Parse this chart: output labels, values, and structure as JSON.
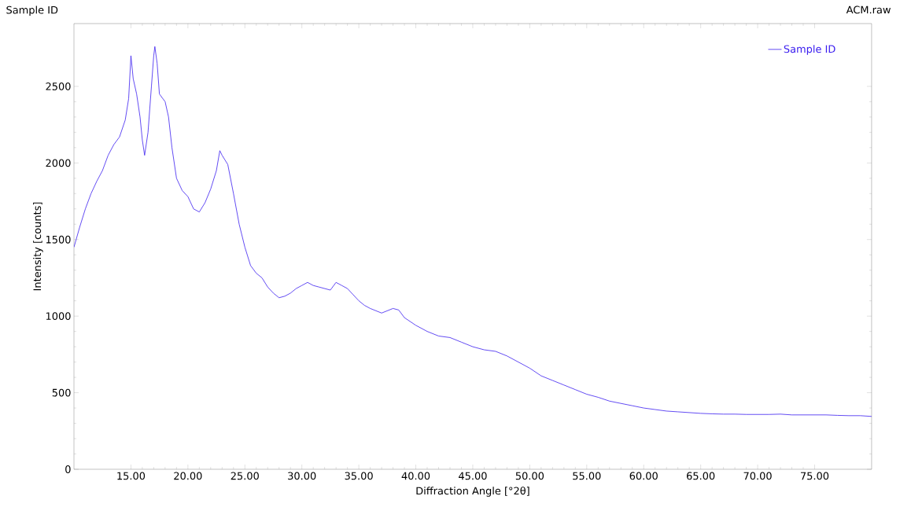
{
  "chart_data": {
    "type": "line",
    "title": "Sample ID",
    "annotations": [
      "ACM.raw"
    ],
    "xlabel": "Diffraction Angle [°2θ]",
    "ylabel": "Intensity [counts]",
    "x": [
      10.0,
      10.5,
      11,
      11.5,
      12,
      12.5,
      13,
      13.5,
      14,
      14.5,
      14.8,
      15.0,
      15.2,
      15.5,
      15.8,
      16.0,
      16.2,
      16.5,
      16.8,
      17.0,
      17.1,
      17.3,
      17.5,
      18.0,
      18.3,
      18.6,
      19.0,
      19.5,
      20.0,
      20.5,
      21.0,
      21.5,
      22.0,
      22.5,
      22.8,
      23.0,
      23.5,
      24.0,
      24.5,
      25,
      25.5,
      26,
      26.5,
      27,
      27.5,
      28,
      28.5,
      29,
      29.5,
      30,
      30.5,
      31,
      31.5,
      32,
      32.5,
      33,
      33.5,
      34,
      34.5,
      35,
      35.5,
      36,
      37,
      38,
      38.5,
      39,
      40,
      41,
      42,
      43,
      44,
      45,
      46,
      47,
      48,
      49,
      50,
      51,
      52,
      53,
      54,
      55,
      56,
      57,
      58,
      59,
      60,
      61,
      62,
      63,
      64,
      65,
      66,
      67,
      68,
      69,
      70,
      71,
      72,
      73,
      74,
      75,
      76,
      77,
      78,
      79,
      80
    ],
    "series": [
      {
        "name": "Sample ID",
        "color": "#3c1ff0",
        "values": [
          1450,
          1580,
          1700,
          1800,
          1880,
          1950,
          2050,
          2120,
          2170,
          2280,
          2420,
          2700,
          2550,
          2450,
          2300,
          2150,
          2050,
          2200,
          2500,
          2700,
          2760,
          2650,
          2450,
          2400,
          2300,
          2100,
          1900,
          1820,
          1780,
          1700,
          1680,
          1740,
          1830,
          1950,
          2080,
          2050,
          1990,
          1800,
          1600,
          1450,
          1330,
          1280,
          1250,
          1190,
          1150,
          1120,
          1130,
          1150,
          1180,
          1200,
          1220,
          1200,
          1190,
          1180,
          1170,
          1220,
          1200,
          1180,
          1140,
          1100,
          1070,
          1050,
          1020,
          1050,
          1040,
          990,
          940,
          900,
          870,
          860,
          830,
          800,
          780,
          770,
          740,
          700,
          660,
          610,
          580,
          550,
          520,
          490,
          470,
          445,
          430,
          415,
          400,
          390,
          380,
          375,
          370,
          365,
          362,
          360,
          360,
          358,
          358,
          358,
          360,
          355,
          355,
          355,
          355,
          352,
          350,
          350,
          345
        ]
      }
    ],
    "xlim": [
      10,
      80
    ],
    "ylim": [
      0,
      2910
    ],
    "xticks": [
      {
        "value": 15,
        "label": "15.00"
      },
      {
        "value": 20,
        "label": "20.00"
      },
      {
        "value": 25,
        "label": "25.00"
      },
      {
        "value": 30,
        "label": "30.00"
      },
      {
        "value": 35,
        "label": "35.00"
      },
      {
        "value": 40,
        "label": "40.00"
      },
      {
        "value": 45,
        "label": "45.00"
      },
      {
        "value": 50,
        "label": "50.00"
      },
      {
        "value": 55,
        "label": "55.00"
      },
      {
        "value": 60,
        "label": "60.00"
      },
      {
        "value": 65,
        "label": "65.00"
      },
      {
        "value": 70,
        "label": "70.00"
      },
      {
        "value": 75,
        "label": "75.00"
      }
    ],
    "yticks": [
      0,
      500,
      1000,
      1500,
      2000,
      2500
    ],
    "legend": "top right"
  }
}
